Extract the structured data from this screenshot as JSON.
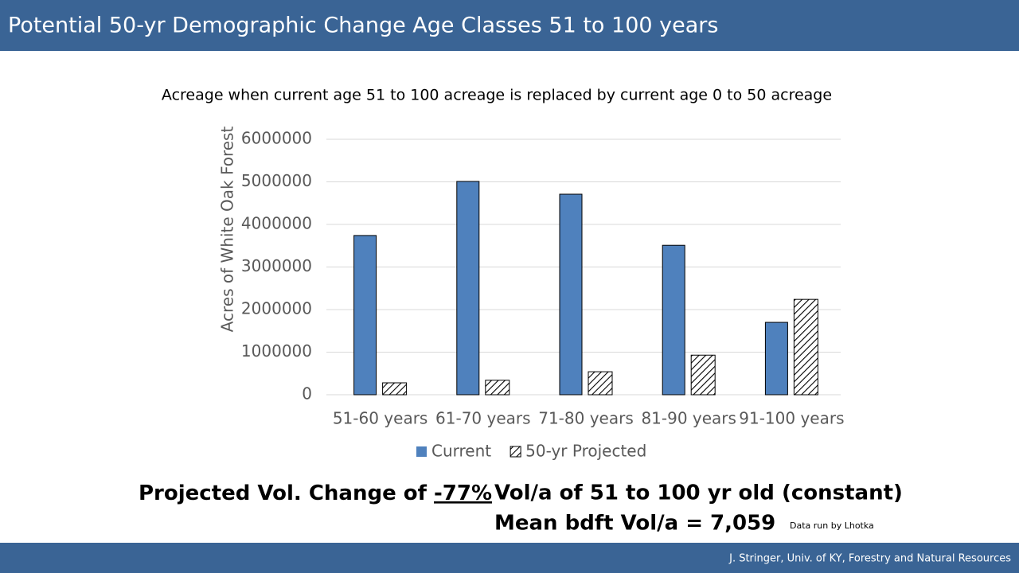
{
  "header": {
    "title": "Potential 50-yr Demographic Change Age Classes 51 to 100 years"
  },
  "chart_data": {
    "type": "bar",
    "title": "Acreage when current age 51 to 100 acreage is replaced by current age 0 to 50 acreage",
    "y_label": "Acres of White Oak Forest",
    "categories": [
      "51-60 years",
      "61-70 years",
      "71-80 years",
      "81-90 years",
      "91-100 years"
    ],
    "series": [
      {
        "name": "Current",
        "color": "#4f81bd",
        "values": [
          3740000,
          5010000,
          4710000,
          3510000,
          1700000
        ]
      },
      {
        "name": "50-yr Projected",
        "color": "#000000",
        "pattern": "diagonal-hatch",
        "values": [
          280000,
          340000,
          540000,
          930000,
          2240000
        ]
      }
    ],
    "ylim": [
      0,
      6000000
    ],
    "yticks": [
      0,
      1000000,
      2000000,
      3000000,
      4000000,
      5000000,
      6000000
    ],
    "grid": true,
    "legend": "bottom"
  },
  "notes": {
    "change_text": "Projected Vol. Change of",
    "change_value": "-77%",
    "vol_line1": "Vol/a of 51 to 100 yr old (constant)",
    "vol_line2": "Mean bdft Vol/a = 7,059",
    "credit": "Data run by Lhotka"
  },
  "footer": {
    "text": "J. Stringer, Univ. of KY, Forestry and Natural Resources"
  }
}
